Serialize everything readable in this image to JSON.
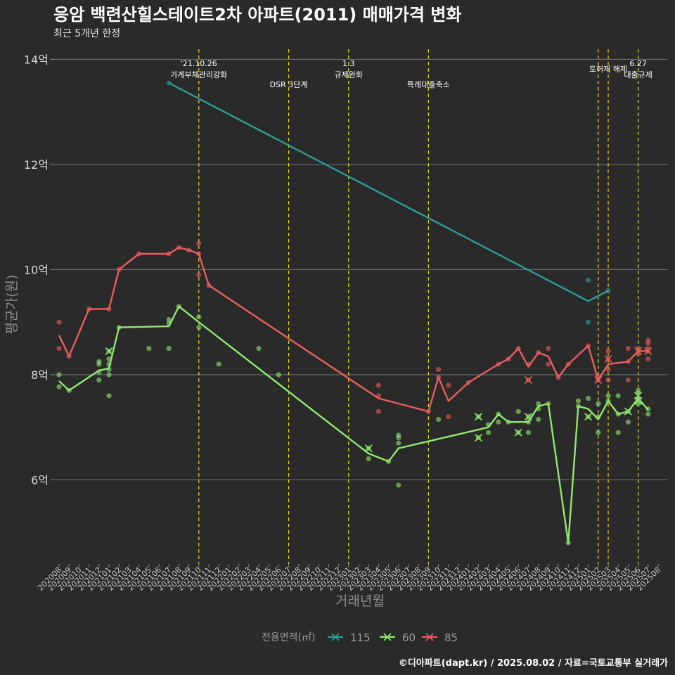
{
  "chart_data": {
    "type": "line",
    "title": "응암 백련산힐스테이트2차 아파트(2011) 매매가격 변화",
    "subtitle": "최근 5개년 한정",
    "xlabel": "거래년월",
    "ylabel": "평균가(원)",
    "caption": "©디아파트(dapt.kr) / 2025.08.02 / 자료=국토교통부 실거래가",
    "legend_title": "전용면적(㎡)",
    "legend_position": "bottom",
    "grid": "horizontal",
    "ylim": [
      4.4,
      14.3
    ],
    "y_ticks": [
      6,
      8,
      10,
      12,
      14
    ],
    "y_tick_labels": [
      "6억",
      "8억",
      "10억",
      "12억",
      "14억"
    ],
    "x_ticks": [
      "202008",
      "202009",
      "202010",
      "202011",
      "202012",
      "202101",
      "202102",
      "202103",
      "202104",
      "202105",
      "202106",
      "202107",
      "202108",
      "202109",
      "202110",
      "202111",
      "202112",
      "202201",
      "202202",
      "202203",
      "202204",
      "202205",
      "202206",
      "202207",
      "202208",
      "202209",
      "202210",
      "202211",
      "202212",
      "202301",
      "202302",
      "202303",
      "202304",
      "202305",
      "202306",
      "202307",
      "202308",
      "202309",
      "202310",
      "202311",
      "202312",
      "202401",
      "202402",
      "202403",
      "202404",
      "202405",
      "202406",
      "202407",
      "202408",
      "202409",
      "202410",
      "202411",
      "202412",
      "202501",
      "202502",
      "202503",
      "202504",
      "202505",
      "202506",
      "202507",
      "202508"
    ],
    "events": [
      {
        "x": "202110",
        "label": "'21.10.26\n가계부채관리강화"
      },
      {
        "x": "202207",
        "label": "DSR 3단계"
      },
      {
        "x": "202301",
        "label": "1.3\n규제완화"
      },
      {
        "x": "202309",
        "label": "특례대출축소"
      },
      {
        "x": "202502",
        "label": ""
      },
      {
        "x": "202503",
        "label": "토허제 해제"
      },
      {
        "x": "202506",
        "label": "6.27\n대출규제"
      }
    ],
    "series": [
      {
        "name": "115",
        "color": "#2a9d96",
        "line": [
          [
            "202107",
            13.55
          ],
          [
            "202501",
            9.4
          ],
          [
            "202503",
            9.6
          ]
        ],
        "points": [
          [
            "202107",
            13.55
          ],
          [
            "202501",
            9.8
          ],
          [
            "202501",
            9.0
          ],
          [
            "202503",
            9.6
          ]
        ],
        "cancelled": []
      },
      {
        "name": "60",
        "color": "#8ee86f",
        "line": [
          [
            "202008",
            7.88
          ],
          [
            "202009",
            7.7
          ],
          [
            "202012",
            8.08
          ],
          [
            "202101",
            8.12
          ],
          [
            "202102",
            8.9
          ],
          [
            "202107",
            8.92
          ],
          [
            "202108",
            9.3
          ],
          [
            "202110",
            9.0
          ],
          [
            "202303",
            6.5
          ],
          [
            "202305",
            6.35
          ],
          [
            "202306",
            6.6
          ],
          [
            "202403",
            7.0
          ],
          [
            "202404",
            7.25
          ],
          [
            "202405",
            7.1
          ],
          [
            "202406",
            7.1
          ],
          [
            "202407",
            7.1
          ],
          [
            "202408",
            7.4
          ],
          [
            "202409",
            7.45
          ],
          [
            "202411",
            4.8
          ],
          [
            "202412",
            7.4
          ],
          [
            "202501",
            7.35
          ],
          [
            "202502",
            7.15
          ],
          [
            "202503",
            7.5
          ],
          [
            "202504",
            7.25
          ],
          [
            "202505",
            7.3
          ],
          [
            "202506",
            7.55
          ],
          [
            "202507",
            7.33
          ]
        ],
        "points": [
          [
            "202008",
            8.0
          ],
          [
            "202008",
            7.77
          ],
          [
            "202009",
            7.7
          ],
          [
            "202012",
            8.25
          ],
          [
            "202012",
            8.2
          ],
          [
            "202012",
            8.05
          ],
          [
            "202012",
            7.9
          ],
          [
            "202101",
            8.45
          ],
          [
            "202101",
            8.3
          ],
          [
            "202101",
            8.2
          ],
          [
            "202101",
            8.1
          ],
          [
            "202101",
            8.0
          ],
          [
            "202101",
            7.6
          ],
          [
            "202102",
            8.9
          ],
          [
            "202105",
            8.5
          ],
          [
            "202107",
            9.05
          ],
          [
            "202107",
            8.98
          ],
          [
            "202107",
            8.5
          ],
          [
            "202108",
            9.3
          ],
          [
            "202110",
            9.1
          ],
          [
            "202110",
            8.9
          ],
          [
            "202112",
            8.2
          ],
          [
            "202204",
            8.5
          ],
          [
            "202206",
            8.0
          ],
          [
            "202303",
            6.6
          ],
          [
            "202303",
            6.4
          ],
          [
            "202305",
            6.35
          ],
          [
            "202306",
            6.85
          ],
          [
            "202306",
            6.8
          ],
          [
            "202306",
            6.7
          ],
          [
            "202306",
            5.9
          ],
          [
            "202310",
            7.15
          ],
          [
            "202402",
            7.2
          ],
          [
            "202402",
            6.8
          ],
          [
            "202403",
            7.05
          ],
          [
            "202403",
            6.9
          ],
          [
            "202404",
            7.25
          ],
          [
            "202404",
            7.1
          ],
          [
            "202405",
            7.1
          ],
          [
            "202406",
            7.3
          ],
          [
            "202406",
            6.9
          ],
          [
            "202407",
            7.2
          ],
          [
            "202407",
            7.1
          ],
          [
            "202407",
            6.9
          ],
          [
            "202408",
            7.45
          ],
          [
            "202408",
            7.35
          ],
          [
            "202408",
            7.15
          ],
          [
            "202409",
            7.45
          ],
          [
            "202411",
            4.8
          ],
          [
            "202412",
            7.5
          ],
          [
            "202412",
            7.4
          ],
          [
            "202501",
            7.55
          ],
          [
            "202501",
            7.2
          ],
          [
            "202502",
            7.45
          ],
          [
            "202502",
            7.2
          ],
          [
            "202502",
            6.9
          ],
          [
            "202503",
            7.6
          ],
          [
            "202503",
            7.5
          ],
          [
            "202504",
            7.6
          ],
          [
            "202504",
            7.25
          ],
          [
            "202504",
            6.9
          ],
          [
            "202505",
            7.3
          ],
          [
            "202505",
            7.1
          ],
          [
            "202506",
            7.7
          ],
          [
            "202506",
            7.65
          ],
          [
            "202506",
            7.55
          ],
          [
            "202506",
            7.45
          ],
          [
            "202507",
            7.35
          ],
          [
            "202507",
            7.25
          ]
        ],
        "cancelled": [
          [
            "202101",
            8.45
          ],
          [
            "202303",
            6.6
          ],
          [
            "202402",
            7.2
          ],
          [
            "202402",
            6.8
          ],
          [
            "202406",
            6.9
          ],
          [
            "202407",
            7.2
          ],
          [
            "202501",
            7.2
          ],
          [
            "202505",
            7.3
          ],
          [
            "202506",
            7.6
          ],
          [
            "202506",
            7.5
          ]
        ]
      },
      {
        "name": "85",
        "color": "#e85d5d",
        "line": [
          [
            "202008",
            8.75
          ],
          [
            "202009",
            8.35
          ],
          [
            "202011",
            9.25
          ],
          [
            "202101",
            9.25
          ],
          [
            "202102",
            10.0
          ],
          [
            "202104",
            10.3
          ],
          [
            "202107",
            10.3
          ],
          [
            "202108",
            10.42
          ],
          [
            "202109",
            10.37
          ],
          [
            "202110",
            10.3
          ],
          [
            "202111",
            9.7
          ],
          [
            "202304",
            7.55
          ],
          [
            "202309",
            7.3
          ],
          [
            "202310",
            7.95
          ],
          [
            "202311",
            7.5
          ],
          [
            "202401",
            7.85
          ],
          [
            "202404",
            8.2
          ],
          [
            "202405",
            8.3
          ],
          [
            "202406",
            8.5
          ],
          [
            "202407",
            8.15
          ],
          [
            "202408",
            8.42
          ],
          [
            "202409",
            8.35
          ],
          [
            "202410",
            7.95
          ],
          [
            "202411",
            8.2
          ],
          [
            "202501",
            8.55
          ],
          [
            "202502",
            7.9
          ],
          [
            "202503",
            8.2
          ],
          [
            "202505",
            8.25
          ],
          [
            "202506",
            8.45
          ],
          [
            "202507",
            8.45
          ]
        ],
        "points": [
          [
            "202008",
            9.0
          ],
          [
            "202008",
            8.5
          ],
          [
            "202009",
            8.35
          ],
          [
            "202011",
            9.25
          ],
          [
            "202101",
            9.25
          ],
          [
            "202102",
            10.0
          ],
          [
            "202104",
            10.3
          ],
          [
            "202107",
            10.3
          ],
          [
            "202108",
            10.42
          ],
          [
            "202109",
            10.37
          ],
          [
            "202110",
            10.5
          ],
          [
            "202110",
            10.3
          ],
          [
            "202110",
            9.9
          ],
          [
            "202111",
            9.7
          ],
          [
            "202304",
            7.8
          ],
          [
            "202304",
            7.6
          ],
          [
            "202304",
            7.3
          ],
          [
            "202309",
            7.3
          ],
          [
            "202310",
            8.1
          ],
          [
            "202310",
            7.95
          ],
          [
            "202311",
            7.8
          ],
          [
            "202311",
            7.2
          ],
          [
            "202401",
            7.85
          ],
          [
            "202404",
            8.2
          ],
          [
            "202405",
            8.3
          ],
          [
            "202406",
            8.5
          ],
          [
            "202407",
            8.2
          ],
          [
            "202407",
            7.9
          ],
          [
            "202408",
            8.42
          ],
          [
            "202409",
            8.5
          ],
          [
            "202409",
            8.2
          ],
          [
            "202410",
            7.95
          ],
          [
            "202411",
            8.2
          ],
          [
            "202501",
            8.55
          ],
          [
            "202502",
            7.95
          ],
          [
            "202502",
            7.9
          ],
          [
            "202503",
            8.45
          ],
          [
            "202503",
            8.3
          ],
          [
            "202503",
            8.1
          ],
          [
            "202503",
            7.9
          ],
          [
            "202505",
            8.5
          ],
          [
            "202505",
            8.25
          ],
          [
            "202505",
            7.9
          ],
          [
            "202506",
            8.5
          ],
          [
            "202506",
            8.45
          ],
          [
            "202506",
            8.4
          ],
          [
            "202507",
            8.65
          ],
          [
            "202507",
            8.6
          ],
          [
            "202507",
            8.5
          ],
          [
            "202507",
            8.45
          ],
          [
            "202507",
            8.3
          ]
        ],
        "cancelled": [
          [
            "202407",
            7.9
          ],
          [
            "202502",
            7.9
          ],
          [
            "202503",
            8.3
          ],
          [
            "202506",
            8.45
          ],
          [
            "202507",
            8.45
          ]
        ]
      }
    ]
  }
}
